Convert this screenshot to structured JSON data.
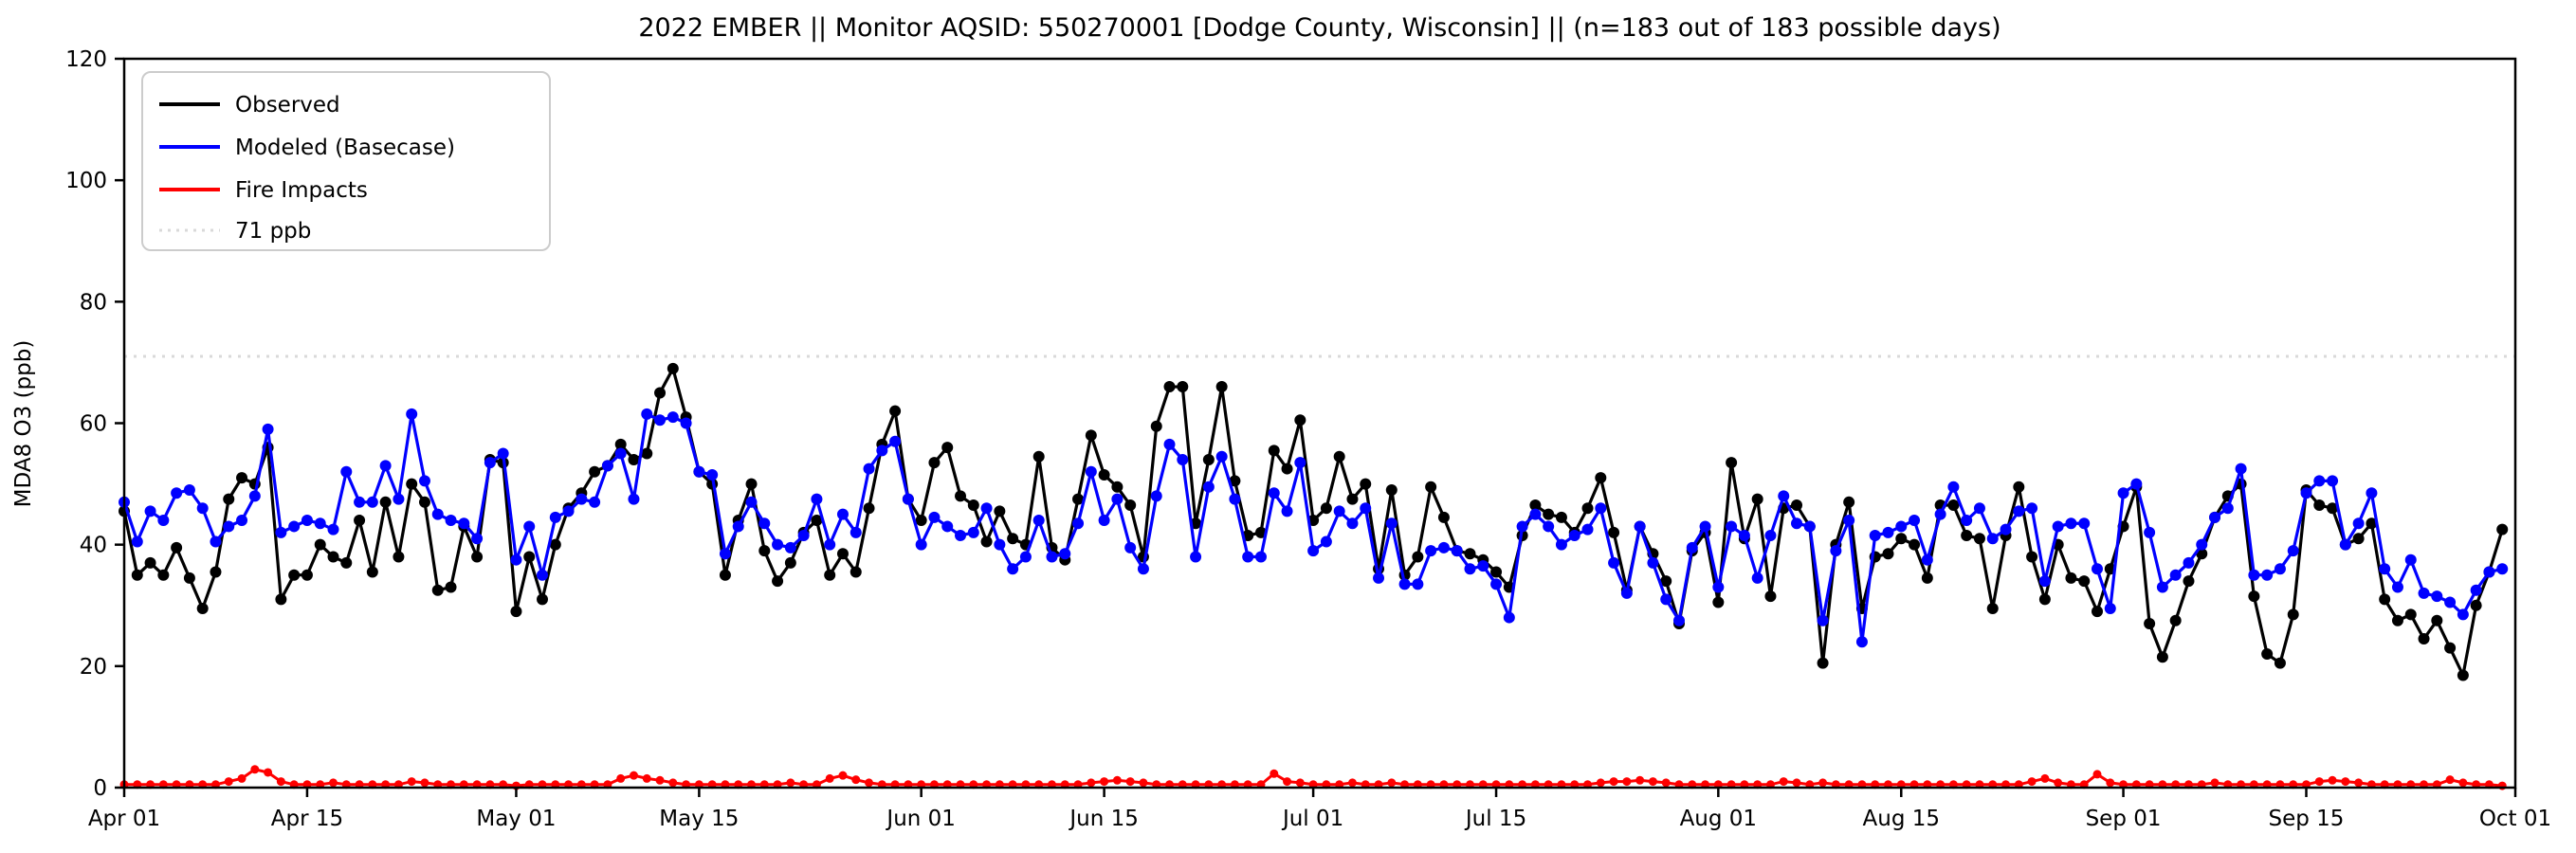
{
  "title": "2022 EMBER || Monitor AQSID: 550270001 [Dodge County, Wisconsin] || (n=183 out of 183 possible days)",
  "chart_data": {
    "type": "line",
    "title": "2022 EMBER || Monitor AQSID: 550270001 [Dodge County, Wisconsin] || (n=183 out of 183 possible days)",
    "xlabel": "",
    "ylabel": "MDA8 O3 (ppb)",
    "ylim": [
      0,
      120
    ],
    "yticks": [
      0,
      20,
      40,
      60,
      80,
      100,
      120
    ],
    "grid": "off",
    "legend_position": "upper left",
    "n_days": 183,
    "x_range": "Apr 01 2022 - Sep 30 2022",
    "x_tick_labels": [
      "Apr 01",
      "Apr 15",
      "May 01",
      "May 15",
      "Jun 01",
      "Jun 15",
      "Jul 01",
      "Jul 15",
      "Aug 01",
      "Aug 15",
      "Sep 01",
      "Sep 15",
      "Oct 01"
    ],
    "x_tick_day_index": [
      0,
      14,
      30,
      44,
      61,
      75,
      91,
      105,
      122,
      136,
      153,
      167,
      183
    ],
    "threshold": {
      "value": 71,
      "label": "71 ppb",
      "color": "#d9d9d9",
      "style": "dotted"
    },
    "series": [
      {
        "name": "Observed",
        "color": "#000000",
        "marker": "circle",
        "values": [
          45.5,
          35,
          37,
          35,
          39.5,
          34.5,
          29.5,
          35.5,
          47.5,
          51,
          50,
          56,
          31,
          35,
          35,
          40,
          38,
          37,
          44,
          35.5,
          47,
          38,
          50,
          47,
          32.5,
          33,
          43,
          38,
          54,
          53.5,
          29,
          38,
          31,
          40,
          46,
          48.5,
          52,
          53,
          56.5,
          54,
          55,
          65,
          69,
          61,
          52,
          50,
          35,
          44,
          50,
          39,
          34,
          37,
          42,
          44,
          35,
          38.5,
          35.5,
          46,
          56.5,
          62,
          47.5,
          44,
          53.5,
          56,
          48,
          46.5,
          40.5,
          45.5,
          41,
          40,
          54.5,
          39.5,
          37.5,
          47.5,
          58,
          51.5,
          49.5,
          46.5,
          38,
          59.5,
          66,
          66,
          43.5,
          54,
          66,
          50.5,
          41.5,
          42,
          55.5,
          52.5,
          60.5,
          44,
          46,
          54.5,
          47.5,
          50,
          36,
          49,
          35,
          38,
          49.5,
          44.5,
          39,
          38.5,
          37.5,
          35.5,
          33,
          41.5,
          46.5,
          45,
          44.5,
          42,
          46,
          51,
          42,
          32.5,
          43,
          38.5,
          34,
          27,
          39,
          42,
          30.5,
          53.5,
          41,
          47.5,
          31.5,
          46,
          46.5,
          43,
          20.5,
          40,
          47,
          29.5,
          38,
          38.5,
          41,
          40,
          34.5,
          46.5,
          46.5,
          41.5,
          41,
          29.5,
          41.5,
          49.5,
          38,
          31,
          40,
          34.5,
          34,
          29,
          36,
          43,
          49.5,
          27,
          21.5,
          27.5,
          34,
          38.5,
          44.5,
          48,
          50,
          31.5,
          22,
          20.5,
          28.5,
          49,
          46.5,
          46,
          40,
          41,
          43.5,
          31,
          27.5,
          28.5,
          24.5,
          27.5,
          23,
          18.5,
          30,
          35.5,
          42.5
        ]
      },
      {
        "name": "Modeled (Basecase)",
        "color": "#0000ff",
        "marker": "circle",
        "values": [
          47,
          40.5,
          45.5,
          44,
          48.5,
          49,
          46,
          40.5,
          43,
          44,
          48,
          59,
          42,
          43,
          44,
          43.5,
          42.5,
          52,
          47,
          47,
          53,
          47.5,
          61.5,
          50.5,
          45,
          44,
          43.5,
          41,
          53.5,
          55,
          37.5,
          43,
          35,
          44.5,
          45.5,
          47.5,
          47,
          53,
          55,
          47.5,
          61.5,
          60.5,
          61,
          60,
          52,
          51.5,
          38.5,
          43,
          47,
          43.5,
          40,
          39.5,
          41.5,
          47.5,
          40,
          45,
          42,
          52.5,
          55.5,
          57,
          47.5,
          40,
          44.5,
          43,
          41.5,
          42,
          46,
          40,
          36,
          38,
          44,
          38,
          38.5,
          43.5,
          52,
          44,
          47.5,
          39.5,
          36,
          48,
          56.5,
          54,
          38,
          49.5,
          54.5,
          47.5,
          38,
          38,
          48.5,
          45.5,
          53.5,
          39,
          40.5,
          45.5,
          43.5,
          46,
          34.5,
          43.5,
          33.5,
          33.5,
          39,
          39.5,
          39,
          36,
          36.5,
          33.5,
          28,
          43,
          45,
          43,
          40,
          41.5,
          42.5,
          46,
          37,
          32,
          43,
          37,
          31,
          27.5,
          39.5,
          43,
          33,
          43,
          41.5,
          34.5,
          41.5,
          48,
          43.5,
          43,
          27.5,
          39,
          44,
          24,
          41.5,
          42,
          43,
          44,
          37.5,
          45,
          49.5,
          44,
          46,
          41,
          42.5,
          45.5,
          46,
          34,
          43,
          43.5,
          43.5,
          36,
          29.5,
          48.5,
          50,
          42,
          33,
          35,
          37,
          40,
          44.5,
          46,
          52.5,
          35,
          35,
          36,
          39,
          48.5,
          50.5,
          50.5,
          40,
          43.5,
          48.5,
          36,
          33,
          37.5,
          32,
          31.5,
          30.5,
          28.5,
          32.5,
          35.5,
          36
        ]
      },
      {
        "name": "Fire Impacts",
        "color": "#ff0000",
        "marker": "circle",
        "values": [
          0.5,
          0.5,
          0.5,
          0.5,
          0.5,
          0.5,
          0.5,
          0.5,
          1,
          1.5,
          3,
          2.5,
          1,
          0.5,
          0.5,
          0.5,
          0.8,
          0.5,
          0.5,
          0.5,
          0.5,
          0.5,
          1,
          0.8,
          0.5,
          0.5,
          0.5,
          0.5,
          0.5,
          0.5,
          0.3,
          0.5,
          0.5,
          0.5,
          0.5,
          0.5,
          0.5,
          0.5,
          1.5,
          2,
          1.5,
          1.2,
          0.8,
          0.5,
          0.5,
          0.5,
          0.5,
          0.5,
          0.5,
          0.5,
          0.5,
          0.8,
          0.5,
          0.5,
          1.5,
          2,
          1.3,
          0.8,
          0.5,
          0.5,
          0.5,
          0.5,
          0.5,
          0.5,
          0.5,
          0.5,
          0.5,
          0.5,
          0.5,
          0.5,
          0.5,
          0.5,
          0.5,
          0.5,
          0.8,
          1,
          1.2,
          1,
          0.8,
          0.5,
          0.5,
          0.5,
          0.5,
          0.5,
          0.5,
          0.5,
          0.5,
          0.5,
          2.3,
          1,
          0.8,
          0.5,
          0.5,
          0.5,
          0.8,
          0.5,
          0.5,
          0.8,
          0.5,
          0.5,
          0.5,
          0.5,
          0.5,
          0.5,
          0.5,
          0.5,
          0.5,
          0.5,
          0.5,
          0.5,
          0.5,
          0.5,
          0.5,
          0.8,
          1,
          1,
          1.2,
          1,
          0.8,
          0.5,
          0.5,
          0.5,
          0.5,
          0.5,
          0.5,
          0.5,
          0.5,
          1,
          0.8,
          0.5,
          0.8,
          0.5,
          0.5,
          0.5,
          0.5,
          0.5,
          0.5,
          0.5,
          0.5,
          0.5,
          0.5,
          0.5,
          0.5,
          0.5,
          0.5,
          0.5,
          1,
          1.5,
          0.8,
          0.5,
          0.5,
          2.2,
          0.8,
          0.5,
          0.5,
          0.5,
          0.5,
          0.5,
          0.5,
          0.5,
          0.8,
          0.5,
          0.5,
          0.5,
          0.5,
          0.5,
          0.5,
          0.5,
          1,
          1.2,
          1,
          0.8,
          0.5,
          0.5,
          0.5,
          0.5,
          0.5,
          0.5,
          1.3,
          0.8,
          0.5,
          0.5,
          0.3
        ]
      }
    ]
  },
  "legend": {
    "items": [
      {
        "label": "Observed",
        "color": "#000000",
        "style": "solid"
      },
      {
        "label": "Modeled (Basecase)",
        "color": "#0000ff",
        "style": "solid"
      },
      {
        "label": "Fire Impacts",
        "color": "#ff0000",
        "style": "solid"
      },
      {
        "label": "71 ppb",
        "color": "#d9d9d9",
        "style": "dotted"
      }
    ]
  },
  "colors": {
    "background": "#ffffff",
    "axis": "#000000"
  }
}
